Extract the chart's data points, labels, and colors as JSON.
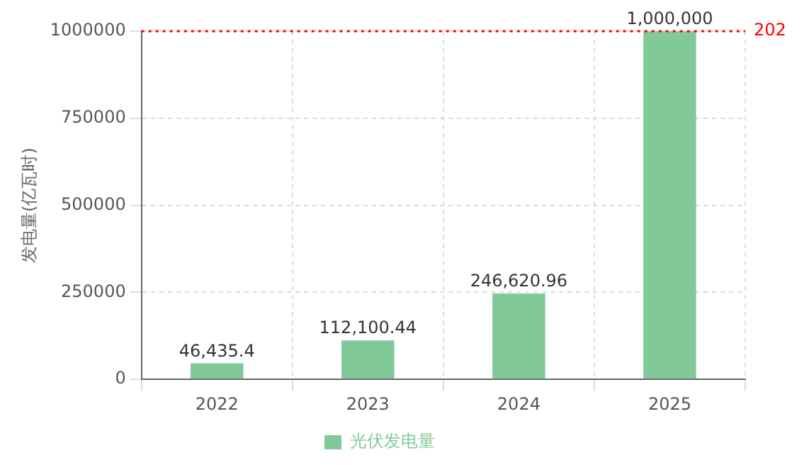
{
  "chart_data": {
    "type": "bar",
    "ylabel": "发电量(亿瓦时)",
    "categories": [
      "2022",
      "2023",
      "2024",
      "2025"
    ],
    "series": [
      {
        "name": "光伏发电量",
        "color": "#82c99a",
        "values": [
          46435.4,
          112100.44,
          246620.96,
          1000000
        ],
        "value_labels": [
          "46,435.4",
          "112,100.44",
          "246,620.96",
          "1,000,000"
        ]
      }
    ],
    "ylim": [
      0,
      1000000
    ],
    "yticks": [
      0,
      250000,
      500000,
      750000,
      1000000
    ],
    "grid": true,
    "legend": "bottom",
    "annotations": [
      "202"
    ],
    "ref_lines": [
      {
        "axis": "y",
        "value": 1000000,
        "color": "#ff0000",
        "line_style": "dotted"
      }
    ]
  }
}
